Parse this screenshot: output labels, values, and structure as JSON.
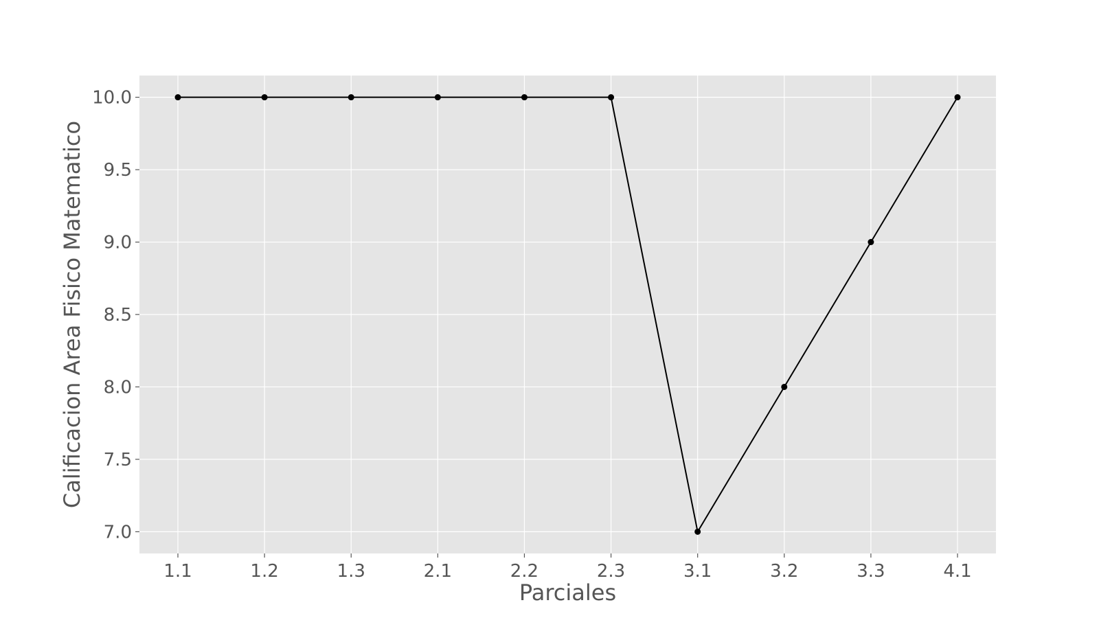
{
  "chart_data": {
    "type": "line",
    "xlabel": "Parciales",
    "ylabel": "Calificacion Area Fisico Matematico",
    "categories": [
      "1.1",
      "1.2",
      "1.3",
      "2.1",
      "2.2",
      "2.3",
      "3.1",
      "3.2",
      "3.3",
      "4.1"
    ],
    "series": [
      {
        "values": [
          10,
          10,
          10,
          10,
          10,
          10,
          7,
          8,
          9,
          10
        ]
      }
    ],
    "ylim": [
      6.85,
      10.15
    ],
    "yticks": [
      "7.0",
      "7.5",
      "8.0",
      "8.5",
      "9.0",
      "9.5",
      "10.0"
    ],
    "grid": true,
    "legend": "none",
    "colors": {
      "plot_background": "#e5e5e5",
      "grid": "#ffffff",
      "line": "#000000",
      "marker": "#000000",
      "text": "#555555"
    }
  }
}
